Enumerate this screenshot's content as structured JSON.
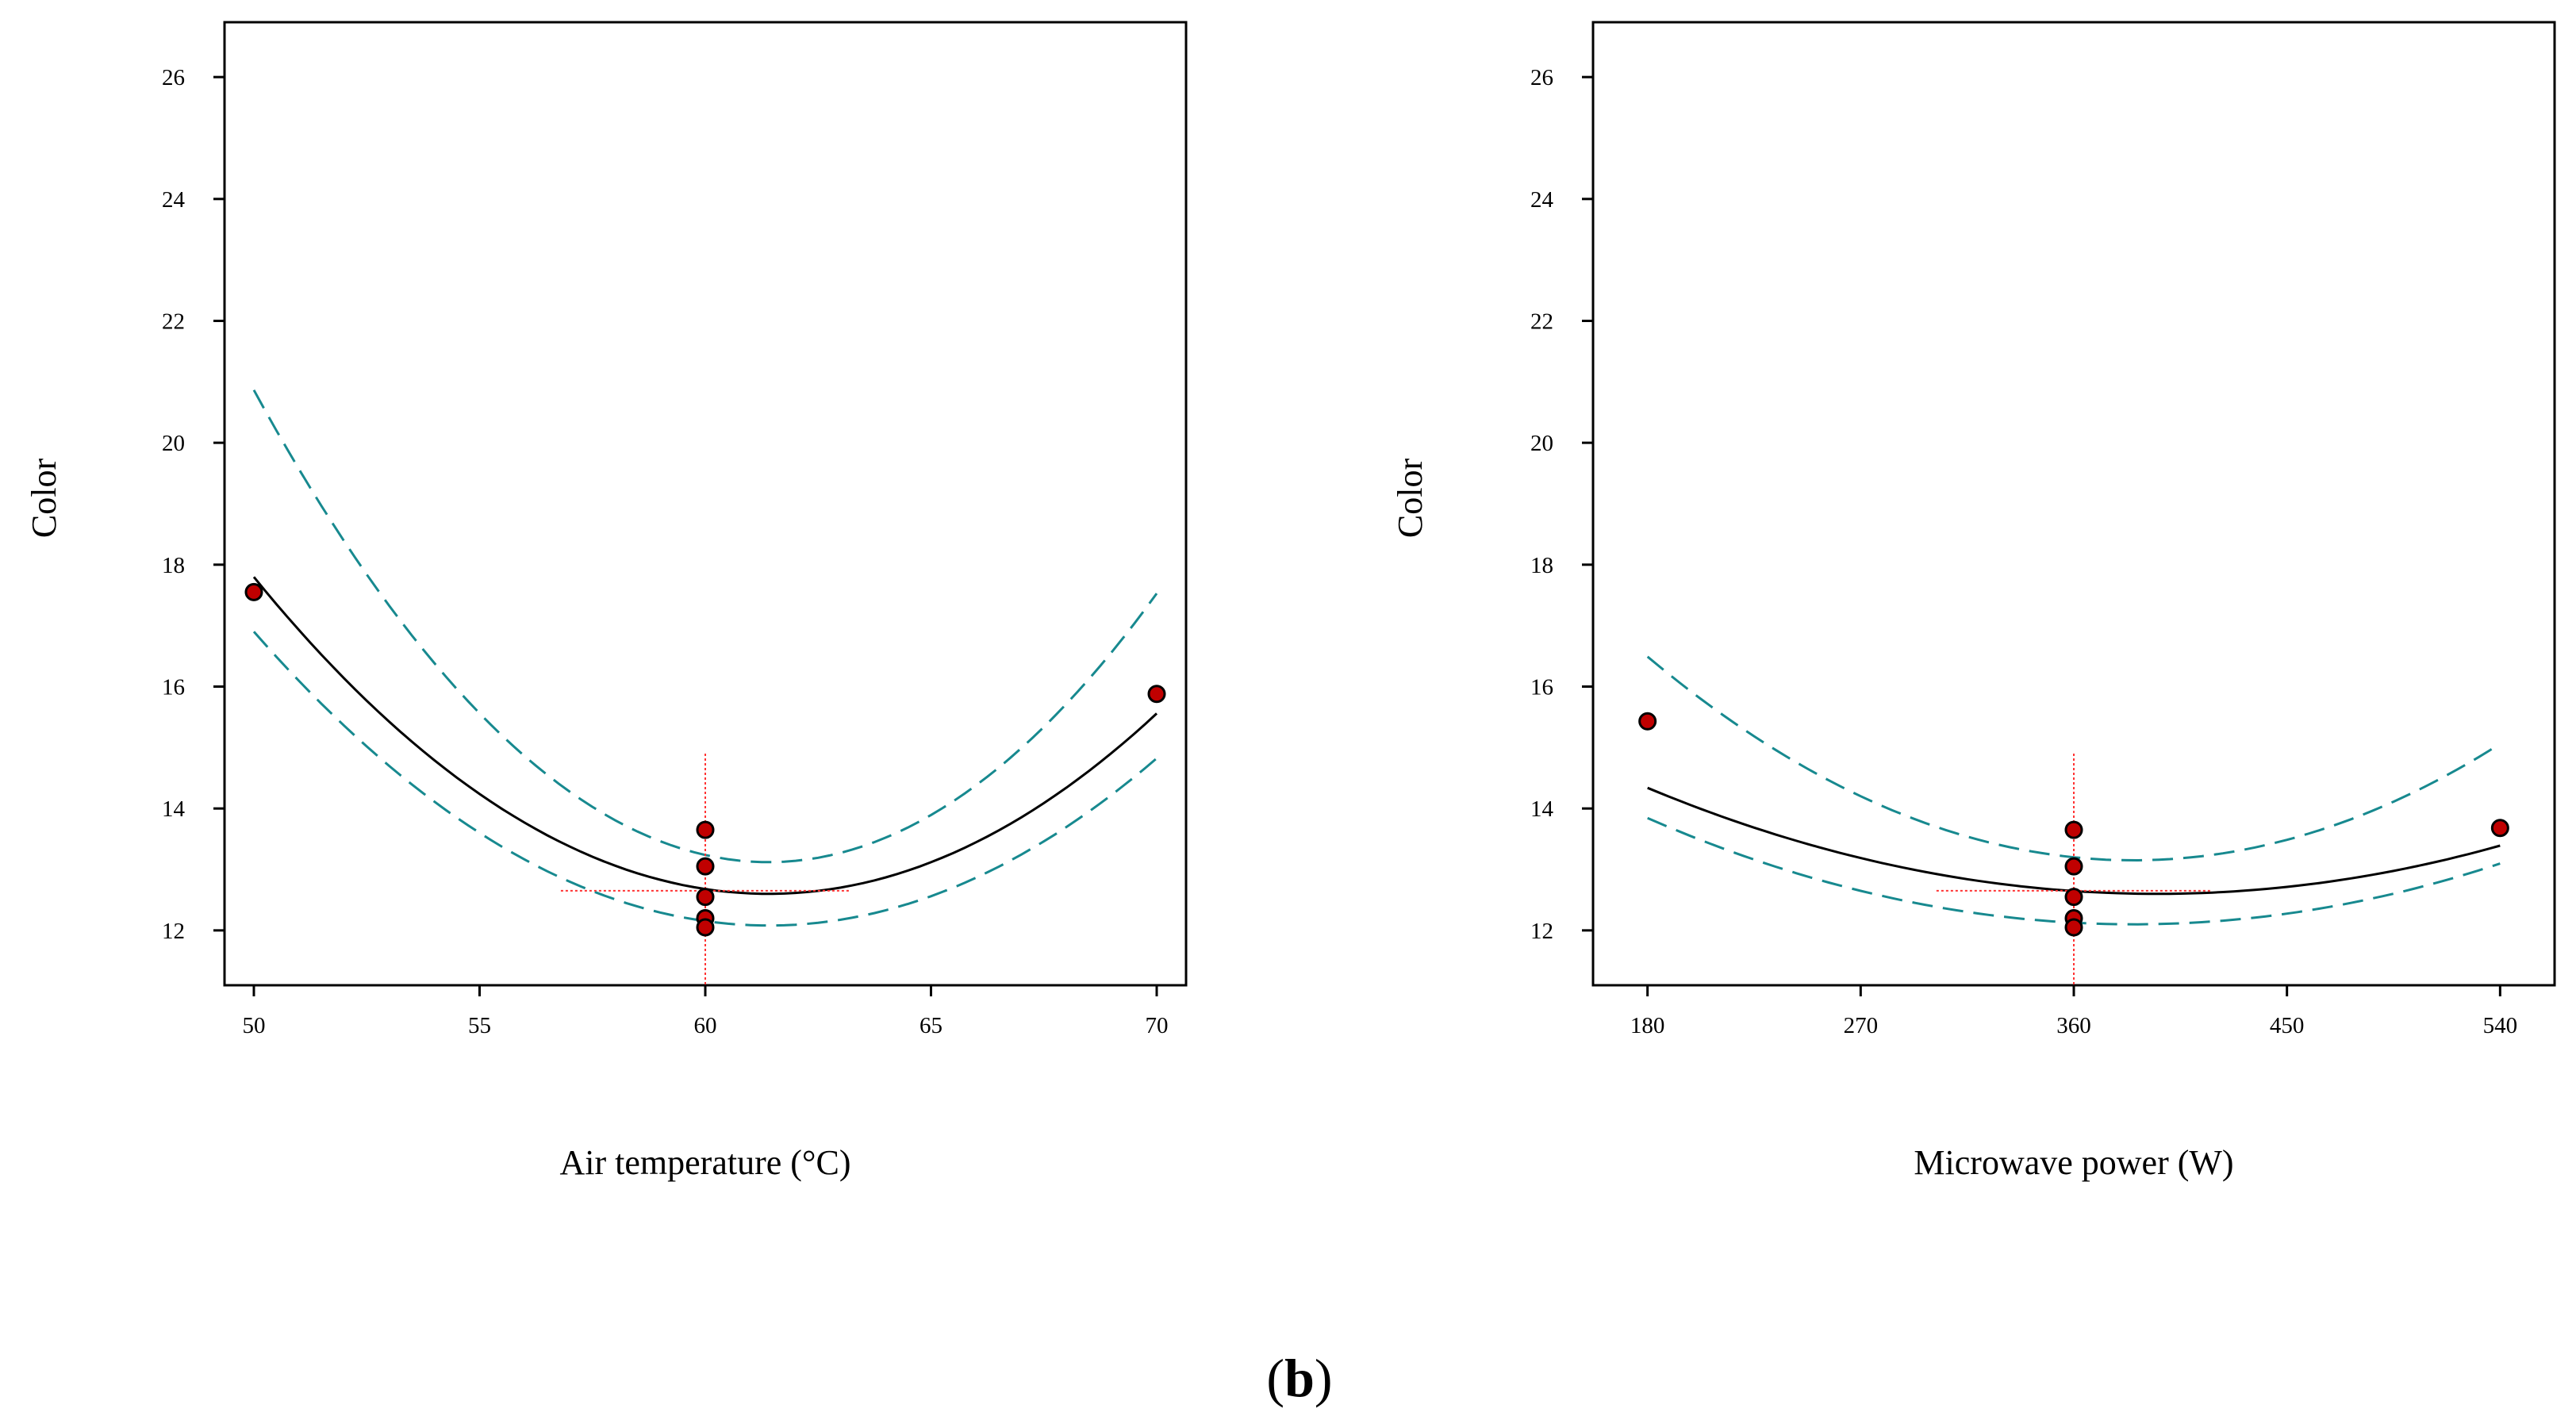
{
  "figure_label": {
    "open": "(",
    "letter": "b",
    "close": ")"
  },
  "colors": {
    "fit_line": "#000000",
    "ci_line": "#17898f",
    "point_fill": "#c00000",
    "point_stroke": "#000000",
    "crosshair": "#ff3333"
  },
  "chart_data": [
    {
      "id": "air-temperature",
      "type": "line",
      "xlabel": "Air temperature (°C)",
      "ylabel": "Color",
      "xlim": [
        49.35,
        70.65
      ],
      "ylim": [
        11.1,
        26.9
      ],
      "xticks": [
        50,
        55,
        60,
        65,
        70
      ],
      "yticks": [
        12,
        14,
        16,
        18,
        20,
        22,
        24,
        26
      ],
      "fit": {
        "x_start": 50,
        "x_end": 70,
        "a": 0.04,
        "vertex_x": 61.4,
        "vertex_y": 12.6
      },
      "ci_upper": {
        "x_start": 50,
        "x_end": 70,
        "a": 0.0596,
        "vertex_x": 61.4,
        "vertex_y": 13.12
      },
      "ci_lower": {
        "x_start": 50,
        "x_end": 70,
        "a": 0.0371,
        "vertex_x": 61.4,
        "vertex_y": 12.08
      },
      "points": [
        {
          "x": 50,
          "y": 17.55
        },
        {
          "x": 60,
          "y": 13.65
        },
        {
          "x": 60,
          "y": 13.05
        },
        {
          "x": 60,
          "y": 12.55
        },
        {
          "x": 60,
          "y": 12.2
        },
        {
          "x": 60,
          "y": 12.05
        },
        {
          "x": 70,
          "y": 15.88
        }
      ],
      "crosshair": {
        "x": 60,
        "y": 12.65,
        "x_from": 56.8,
        "x_to": 63.2,
        "y_from": 11.1,
        "y_to": 14.9
      }
    },
    {
      "id": "microwave-power",
      "type": "line",
      "xlabel": "Microwave power (W)",
      "ylabel": "Color",
      "xlim": [
        157,
        563
      ],
      "ylim": [
        11.1,
        26.9
      ],
      "xticks": [
        180,
        270,
        360,
        450,
        540
      ],
      "yticks": [
        12,
        14,
        16,
        18,
        20,
        22,
        24,
        26
      ],
      "fit": {
        "x_start": 180,
        "x_end": 540,
        "a": 3.76e-05,
        "vertex_x": 395,
        "vertex_y": 12.6
      },
      "ci_upper": {
        "x_start": 180,
        "x_end": 540,
        "a": 7.95e-05,
        "vertex_x": 385,
        "vertex_y": 13.15
      },
      "ci_lower": {
        "x_start": 180,
        "x_end": 540,
        "a": 4.15e-05,
        "vertex_x": 385,
        "vertex_y": 12.1
      },
      "points": [
        {
          "x": 180,
          "y": 15.43
        },
        {
          "x": 360,
          "y": 13.65
        },
        {
          "x": 360,
          "y": 13.05
        },
        {
          "x": 360,
          "y": 12.55
        },
        {
          "x": 360,
          "y": 12.2
        },
        {
          "x": 360,
          "y": 12.05
        },
        {
          "x": 540,
          "y": 13.68
        }
      ],
      "crosshair": {
        "x": 360,
        "y": 12.65,
        "x_from": 302,
        "x_to": 418,
        "y_from": 11.1,
        "y_to": 14.9
      }
    }
  ]
}
